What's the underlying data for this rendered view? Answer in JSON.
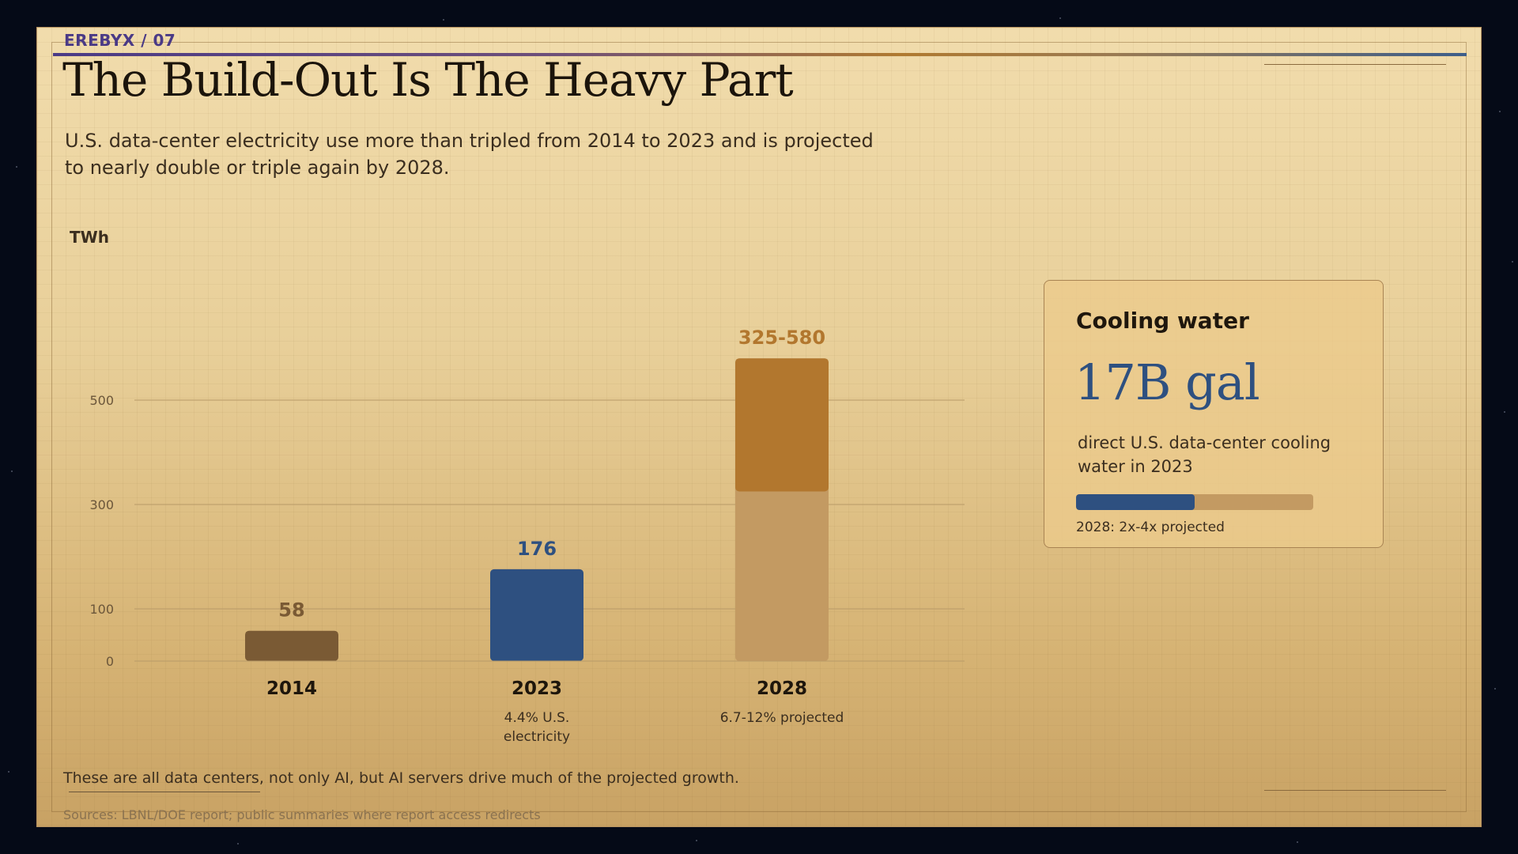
{
  "kicker": "EREBYX / 07",
  "title": "The Build-Out Is The Heavy Part",
  "subtitle": "U.S. data-center electricity use more than tripled from 2014 to 2023 and is projected to nearly double or triple again by 2028.",
  "colors": {
    "bar_2014": "#7a5a34",
    "bar_2023": "#2e5080",
    "bar_2028_low": "#c39a62",
    "bar_2028_high": "#b2772e",
    "accent_blue": "#2e5080",
    "accent_amber": "#b2772e"
  },
  "chart_data": {
    "type": "bar",
    "ylabel": "TWh",
    "y_ticks": [
      0,
      100,
      300,
      500
    ],
    "ylim": [
      0,
      580
    ],
    "grid": true,
    "categories": [
      "2014",
      "2023",
      "2028"
    ],
    "bars": [
      {
        "category": "2014",
        "value": 58,
        "label": "58",
        "note": ""
      },
      {
        "category": "2023",
        "value": 176,
        "label": "176",
        "note": "4.4% U.S. electricity"
      },
      {
        "category": "2028",
        "low": 325,
        "high": 580,
        "label": "325-580",
        "note": "6.7-12% projected"
      }
    ]
  },
  "card": {
    "title": "Cooling water",
    "value": "17B gal",
    "description": "direct U.S. data-center cooling water in 2023",
    "bar_fraction": 0.5,
    "footnote": "2028: 2x-4x projected"
  },
  "footnote": "These are all data centers, not only AI, but AI servers drive much of the projected growth.",
  "sources": "Sources: LBNL/DOE report; public summaries where report access redirects"
}
